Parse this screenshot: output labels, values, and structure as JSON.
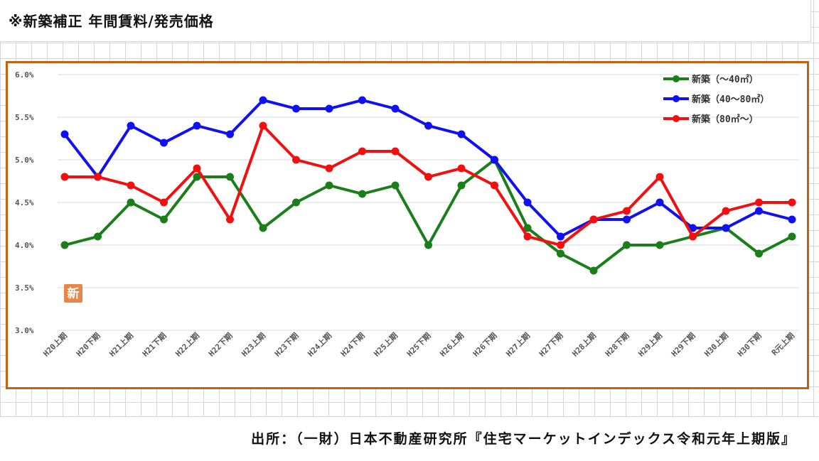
{
  "page": {
    "title": "※新築補正 年間賃料/発売価格",
    "source": "出所：（一財）日本不動産研究所『住宅マーケットインデックス令和元年上期版』"
  },
  "badge": {
    "text": "新",
    "color": "#e8864a"
  },
  "colors": {
    "frame": "#c4610f",
    "gridline": "#d9d9d9",
    "axis_text": "#555555"
  },
  "chart_data": {
    "type": "line",
    "title": "",
    "xlabel": "",
    "ylabel": "",
    "ylim": [
      3.0,
      6.0
    ],
    "yticks": [
      3.0,
      3.5,
      4.0,
      4.5,
      5.0,
      5.5,
      6.0
    ],
    "ytick_labels": [
      "3.0%",
      "3.5%",
      "4.0%",
      "4.5%",
      "5.0%",
      "5.5%",
      "6.0%"
    ],
    "grid": "horizontal",
    "legend_position": "top-right",
    "categories": [
      "H20上期",
      "H20下期",
      "H21上期",
      "H21下期",
      "H22上期",
      "H22下期",
      "H23上期",
      "H23下期",
      "H24上期",
      "H24下期",
      "H25上期",
      "H25下期",
      "H26上期",
      "H26下期",
      "H27上期",
      "H27下期",
      "H28上期",
      "H28下期",
      "H29上期",
      "H29下期",
      "H30上期",
      "H30下期",
      "R元上期"
    ],
    "series": [
      {
        "name": "新築（～40㎡）",
        "color": "#1a7f1a",
        "values": [
          4.0,
          4.1,
          4.5,
          4.3,
          4.8,
          4.8,
          4.2,
          4.5,
          4.7,
          4.6,
          4.7,
          4.0,
          4.7,
          5.0,
          4.2,
          3.9,
          3.7,
          4.0,
          4.0,
          4.1,
          4.2,
          3.9,
          4.1
        ]
      },
      {
        "name": "新築（40～80㎡）",
        "color": "#1010f0",
        "values": [
          5.3,
          4.8,
          5.4,
          5.2,
          5.4,
          5.3,
          5.7,
          5.6,
          5.6,
          5.7,
          5.6,
          5.4,
          5.3,
          5.0,
          4.5,
          4.1,
          4.3,
          4.3,
          4.5,
          4.2,
          4.2,
          4.4,
          4.3
        ]
      },
      {
        "name": "新築（80㎡～）",
        "color": "#f01010",
        "values": [
          4.8,
          4.8,
          4.7,
          4.5,
          4.9,
          4.3,
          5.4,
          5.0,
          4.9,
          5.1,
          5.1,
          4.8,
          4.9,
          4.7,
          4.1,
          4.0,
          4.3,
          4.4,
          4.8,
          4.1,
          4.4,
          4.5,
          4.5
        ]
      }
    ]
  }
}
